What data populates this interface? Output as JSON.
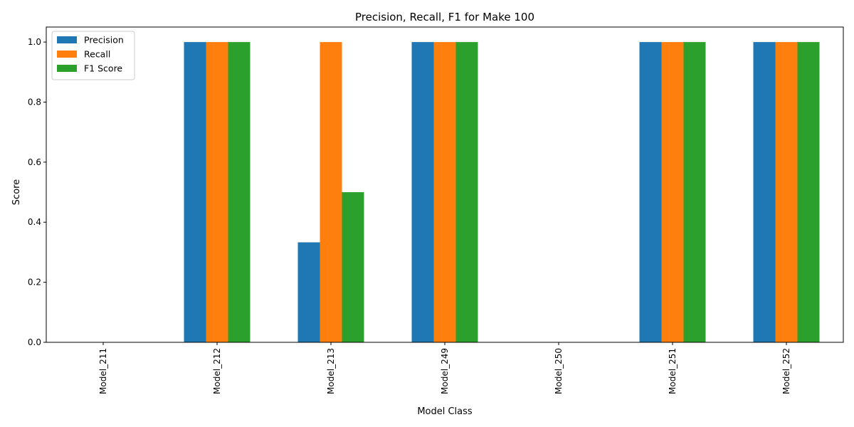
{
  "chart_data": {
    "type": "bar",
    "title": "Precision, Recall, F1 for Make 100",
    "xlabel": "Model Class",
    "ylabel": "Score",
    "categories": [
      "Model_211",
      "Model_212",
      "Model_213",
      "Model_249",
      "Model_250",
      "Model_251",
      "Model_252"
    ],
    "series": [
      {
        "name": "Precision",
        "color": "#1f77b4",
        "values": [
          0,
          1.0,
          0.333,
          1.0,
          0,
          1.0,
          1.0
        ]
      },
      {
        "name": "Recall",
        "color": "#ff7f0e",
        "values": [
          0,
          1.0,
          1.0,
          1.0,
          0,
          1.0,
          1.0
        ]
      },
      {
        "name": "F1 Score",
        "color": "#2ca02c",
        "values": [
          0,
          1.0,
          0.5,
          1.0,
          0,
          1.0,
          1.0
        ]
      }
    ],
    "ylim": [
      0,
      1.05
    ],
    "yticks": [
      "0.0",
      "0.2",
      "0.4",
      "0.6",
      "0.8",
      "1.0"
    ],
    "grid": false,
    "legend_position": "top-left"
  }
}
